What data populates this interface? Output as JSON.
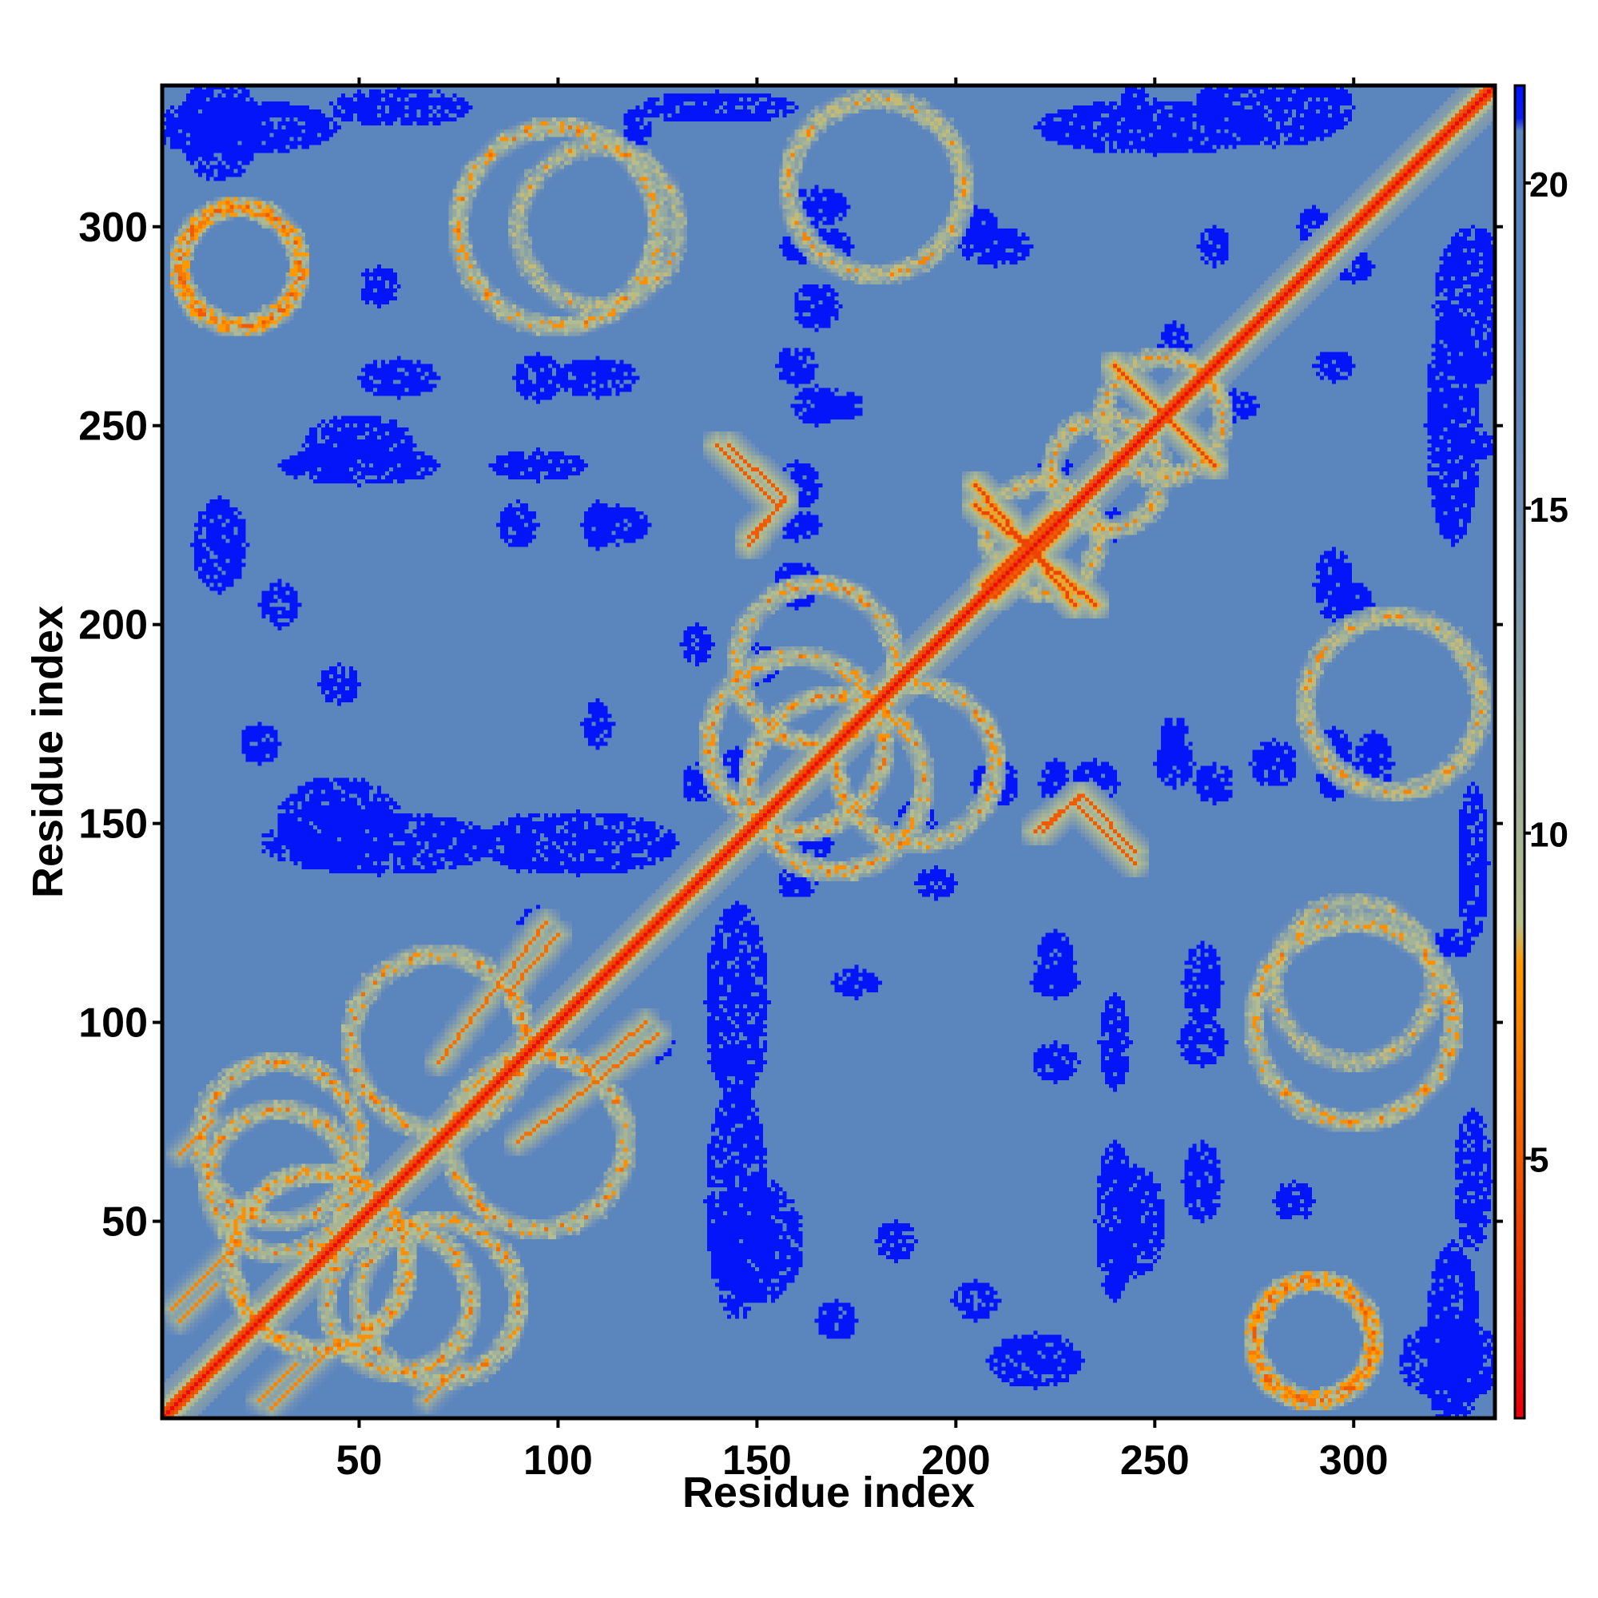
{
  "chart_data": {
    "type": "heatmap",
    "title": "",
    "xlabel": "Residue index",
    "ylabel": "Residue index",
    "n_residues": 335,
    "xlim": [
      1,
      335
    ],
    "ylim": [
      1,
      335
    ],
    "x_ticks": [
      50,
      100,
      150,
      200,
      250,
      300
    ],
    "y_ticks": [
      50,
      100,
      150,
      200,
      250,
      300
    ],
    "x_tick_labels": [
      "50",
      "100",
      "150",
      "200",
      "250",
      "300"
    ],
    "y_tick_labels": [
      "50",
      "100",
      "150",
      "200",
      "250",
      "300"
    ],
    "colorbar": {
      "range": [
        1,
        21.5
      ],
      "ticks": [
        5,
        10,
        15,
        20
      ],
      "tick_labels": [
        "5",
        "10",
        "15",
        "20"
      ],
      "stops": [
        {
          "value": 1,
          "color": "#e8000b"
        },
        {
          "value": 5,
          "color": "#f05a00"
        },
        {
          "value": 8,
          "color": "#ff9900"
        },
        {
          "value": 8.6,
          "color": "#b9c08c"
        },
        {
          "value": 12,
          "color": "#8fa6a3"
        },
        {
          "value": 15,
          "color": "#6e8fb8"
        },
        {
          "value": 18,
          "color": "#5a85bd"
        },
        {
          "value": 20.8,
          "color": "#5a85bd"
        },
        {
          "value": 21,
          "color": "#0b1ef0"
        },
        {
          "value": 21.5,
          "color": "#0011ff"
        }
      ]
    },
    "background_value": 18,
    "diagonal_value": 1.5,
    "contact_features": [
      {
        "kind": "diagonal-band",
        "from": 1,
        "to": 335,
        "value": 6,
        "width": 4
      },
      {
        "kind": "antiparallel",
        "x": [
          205,
          235
        ],
        "y": [
          230,
          205
        ],
        "value": 4
      },
      {
        "kind": "antiparallel",
        "x": [
          240,
          262
        ],
        "y": [
          265,
          243
        ],
        "value": 4
      },
      {
        "kind": "antiparallel",
        "x": [
          207,
          225
        ],
        "y": [
          210,
          228
        ],
        "value": 4
      },
      {
        "kind": "antiparallel",
        "x": [
          140,
          155
        ],
        "y": [
          245,
          230
        ],
        "value": 5
      },
      {
        "kind": "antiparallel",
        "x": [
          148,
          157
        ],
        "y": [
          222,
          231
        ],
        "value": 5
      },
      {
        "kind": "antiparallel",
        "x": [
          220,
          232
        ],
        "y": [
          148,
          157
        ],
        "value": 5
      },
      {
        "kind": "antiparallel",
        "x": [
          232,
          245
        ],
        "y": [
          157,
          143
        ],
        "value": 5
      },
      {
        "kind": "antiparallel",
        "x": [
          88,
          100
        ],
        "y": [
          108,
          122
        ],
        "value": 6
      },
      {
        "kind": "antiparallel",
        "x": [
          90,
          125
        ],
        "y": [
          70,
          97
        ],
        "value": 6
      },
      {
        "kind": "antiparallel",
        "x": [
          3,
          20
        ],
        "y": [
          28,
          45
        ],
        "value": 7
      },
      {
        "kind": "antiparallel",
        "x": [
          25,
          34
        ],
        "y": [
          5,
          14
        ],
        "value": 7
      },
      {
        "kind": "antiparallel",
        "x": [
          67,
          75
        ],
        "y": [
          5,
          13
        ],
        "value": 7
      },
      {
        "kind": "ring",
        "cx": 222,
        "cy": 222,
        "r": 14,
        "value": 11
      },
      {
        "kind": "ring",
        "cx": 252,
        "cy": 252,
        "r": 15,
        "value": 11
      },
      {
        "kind": "ring",
        "cx": 238,
        "cy": 238,
        "r": 14,
        "value": 11
      },
      {
        "kind": "ring",
        "cx": 160,
        "cy": 170,
        "r": 22,
        "value": 10
      },
      {
        "kind": "ring",
        "cx": 190,
        "cy": 165,
        "r": 20,
        "value": 10
      },
      {
        "kind": "ring",
        "cx": 40,
        "cy": 40,
        "r": 22,
        "value": 10
      },
      {
        "kind": "ring",
        "cx": 60,
        "cy": 30,
        "r": 18,
        "value": 10
      },
      {
        "kind": "ring",
        "cx": 30,
        "cy": 70,
        "r": 20,
        "value": 10
      },
      {
        "kind": "ring",
        "cx": 95,
        "cy": 70,
        "r": 22,
        "value": 10
      },
      {
        "kind": "ring",
        "cx": 300,
        "cy": 100,
        "r": 25,
        "value": 10
      },
      {
        "kind": "ring",
        "cx": 310,
        "cy": 180,
        "r": 22,
        "value": 11
      },
      {
        "kind": "ring",
        "cx": 180,
        "cy": 310,
        "r": 22,
        "value": 11
      },
      {
        "kind": "ring",
        "cx": 110,
        "cy": 300,
        "r": 20,
        "value": 11
      },
      {
        "kind": "ring",
        "cx": 20,
        "cy": 290,
        "r": 15,
        "value": 9
      },
      {
        "kind": "ring",
        "cx": 290,
        "cy": 20,
        "r": 15,
        "value": 9
      }
    ],
    "far_contact_blobs": [
      [
        165,
        295,
        9,
        5
      ],
      [
        210,
        295,
        9,
        5
      ],
      [
        160,
        265,
        5,
        5
      ],
      [
        170,
        255,
        7,
        4
      ],
      [
        150,
        190,
        6,
        5
      ],
      [
        160,
        225,
        6,
        4
      ],
      [
        210,
        225,
        5,
        4
      ],
      [
        300,
        290,
        5,
        4
      ],
      [
        55,
        145,
        30,
        8
      ],
      [
        105,
        145,
        25,
        8
      ],
      [
        50,
        240,
        20,
        5
      ],
      [
        95,
        240,
        12,
        4
      ],
      [
        60,
        262,
        10,
        5
      ],
      [
        110,
        262,
        10,
        5
      ],
      [
        115,
        225,
        8,
        5
      ],
      [
        30,
        205,
        5,
        6
      ],
      [
        145,
        165,
        5,
        4
      ],
      [
        210,
        160,
        6,
        6
      ],
      [
        235,
        160,
        6,
        6
      ],
      [
        255,
        165,
        5,
        6
      ],
      [
        280,
        165,
        6,
        6
      ],
      [
        300,
        205,
        5,
        6
      ],
      [
        305,
        165,
        5,
        8
      ],
      [
        245,
        50,
        8,
        14
      ],
      [
        150,
        45,
        12,
        16
      ],
      [
        220,
        15,
        12,
        7
      ],
      [
        285,
        55,
        5,
        5
      ],
      [
        175,
        110,
        6,
        4
      ],
      [
        225,
        110,
        6,
        4
      ],
      [
        145,
        90,
        7,
        4
      ],
      [
        225,
        90,
        6,
        5
      ],
      [
        262,
        95,
        6,
        6
      ],
      [
        325,
        15,
        14,
        10
      ],
      [
        330,
        280,
        10,
        20
      ],
      [
        330,
        245,
        6,
        4
      ],
      [
        325,
        120,
        5,
        4
      ],
      [
        295,
        265,
        5,
        4
      ],
      [
        160,
        135,
        5,
        4
      ],
      [
        195,
        135,
        5,
        4
      ],
      [
        240,
        225,
        5,
        4
      ],
      [
        270,
        255,
        6,
        4
      ],
      [
        95,
        125,
        5,
        4
      ],
      [
        20,
        325,
        25,
        7
      ],
      [
        250,
        325,
        30,
        7
      ],
      [
        60,
        330,
        18,
        5
      ],
      [
        140,
        330,
        20,
        4
      ],
      [
        25,
        170,
        5,
        5
      ],
      [
        185,
        45,
        5,
        5
      ],
      [
        185,
        185,
        5,
        5
      ]
    ]
  }
}
